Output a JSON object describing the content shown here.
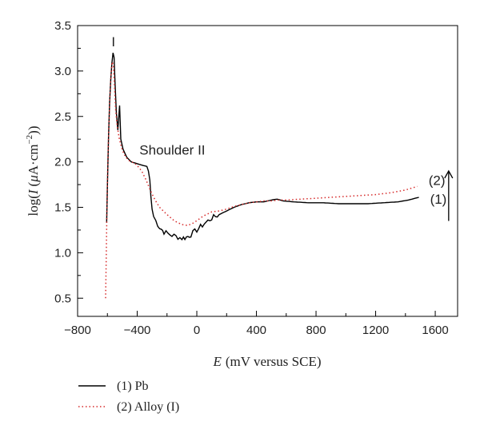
{
  "chart_data": {
    "type": "line",
    "xlabel": {
      "symbol": "E",
      "units": "(mV versus SCE)"
    },
    "ylabel": {
      "prefix": "log(",
      "symbol": "I",
      "units_open": "(",
      "mu": "μ",
      "units_body": "A·cm",
      "exponent": "−2",
      "units_close": "))"
    },
    "xlim": [
      -800,
      1750
    ],
    "ylim": [
      0.3,
      3.5
    ],
    "xticks": [
      -800,
      -400,
      0,
      400,
      800,
      1200,
      1600
    ],
    "xtick_labels": [
      "−800",
      "−400",
      "0",
      "400",
      "800",
      "1200",
      "1600"
    ],
    "yticks": [
      0.5,
      1.0,
      1.5,
      2.0,
      2.5,
      3.0,
      3.5
    ],
    "ytick_labels": [
      "0.5",
      "1.0",
      "1.5",
      "2.0",
      "2.5",
      "3.0",
      "3.5"
    ],
    "grid": false,
    "legend_position": "bottom-left, below axes",
    "series": [
      {
        "name": "(1) Pb",
        "end_label": "(1)",
        "color": "#000000",
        "style": "solid",
        "points": [
          [
            -605,
            1.33
          ],
          [
            -600,
            1.75
          ],
          [
            -593,
            2.25
          ],
          [
            -585,
            2.65
          ],
          [
            -578,
            2.9
          ],
          [
            -570,
            3.08
          ],
          [
            -562,
            3.2
          ],
          [
            -555,
            3.15
          ],
          [
            -548,
            2.85
          ],
          [
            -540,
            2.55
          ],
          [
            -530,
            2.35
          ],
          [
            -518,
            2.62
          ],
          [
            -510,
            2.25
          ],
          [
            -495,
            2.14
          ],
          [
            -470,
            2.05
          ],
          [
            -440,
            2.0
          ],
          [
            -400,
            1.98
          ],
          [
            -360,
            1.96
          ],
          [
            -335,
            1.95
          ],
          [
            -325,
            1.9
          ],
          [
            -315,
            1.8
          ],
          [
            -308,
            1.62
          ],
          [
            -300,
            1.48
          ],
          [
            -290,
            1.4
          ],
          [
            -275,
            1.35
          ],
          [
            -250,
            1.28
          ],
          [
            -220,
            1.23
          ],
          [
            -180,
            1.2
          ],
          [
            -140,
            1.18
          ],
          [
            -100,
            1.16
          ],
          [
            -70,
            1.17
          ],
          [
            -40,
            1.2
          ],
          [
            0,
            1.25
          ],
          [
            50,
            1.32
          ],
          [
            100,
            1.38
          ],
          [
            150,
            1.42
          ],
          [
            200,
            1.46
          ],
          [
            250,
            1.5
          ],
          [
            300,
            1.53
          ],
          [
            350,
            1.55
          ],
          [
            400,
            1.56
          ],
          [
            450,
            1.56
          ],
          [
            500,
            1.58
          ],
          [
            540,
            1.59
          ],
          [
            580,
            1.57
          ],
          [
            650,
            1.56
          ],
          [
            750,
            1.55
          ],
          [
            850,
            1.55
          ],
          [
            950,
            1.54
          ],
          [
            1050,
            1.54
          ],
          [
            1150,
            1.54
          ],
          [
            1250,
            1.55
          ],
          [
            1350,
            1.56
          ],
          [
            1420,
            1.58
          ],
          [
            1490,
            1.61
          ]
        ]
      },
      {
        "name": "(2) Alloy (I)",
        "end_label": "(2)",
        "color": "#d62a2a",
        "style": "dotted",
        "points": [
          [
            -612,
            0.5
          ],
          [
            -608,
            0.95
          ],
          [
            -603,
            1.5
          ],
          [
            -597,
            2.0
          ],
          [
            -590,
            2.4
          ],
          [
            -582,
            2.75
          ],
          [
            -575,
            2.98
          ],
          [
            -568,
            3.1
          ],
          [
            -560,
            3.07
          ],
          [
            -553,
            2.85
          ],
          [
            -545,
            2.58
          ],
          [
            -535,
            2.4
          ],
          [
            -520,
            2.25
          ],
          [
            -500,
            2.13
          ],
          [
            -480,
            2.06
          ],
          [
            -460,
            2.02
          ],
          [
            -440,
            2.0
          ],
          [
            -420,
            1.99
          ],
          [
            -400,
            1.96
          ],
          [
            -370,
            1.9
          ],
          [
            -340,
            1.8
          ],
          [
            -310,
            1.68
          ],
          [
            -280,
            1.58
          ],
          [
            -250,
            1.5
          ],
          [
            -200,
            1.42
          ],
          [
            -150,
            1.35
          ],
          [
            -100,
            1.31
          ],
          [
            -60,
            1.3
          ],
          [
            -20,
            1.33
          ],
          [
            40,
            1.4
          ],
          [
            100,
            1.45
          ],
          [
            150,
            1.46
          ],
          [
            200,
            1.48
          ],
          [
            250,
            1.51
          ],
          [
            300,
            1.53
          ],
          [
            350,
            1.55
          ],
          [
            400,
            1.56
          ],
          [
            450,
            1.57
          ],
          [
            500,
            1.57
          ],
          [
            550,
            1.58
          ],
          [
            600,
            1.58
          ],
          [
            700,
            1.59
          ],
          [
            800,
            1.6
          ],
          [
            900,
            1.61
          ],
          [
            1000,
            1.62
          ],
          [
            1100,
            1.63
          ],
          [
            1200,
            1.64
          ],
          [
            1300,
            1.66
          ],
          [
            1400,
            1.69
          ],
          [
            1480,
            1.73
          ]
        ]
      }
    ],
    "annotations": [
      {
        "text": "I",
        "x": -560,
        "y": 3.27
      },
      {
        "text": "Shoulder II",
        "x": -385,
        "y": 2.08
      }
    ],
    "arrow": {
      "x": 1690,
      "y_from": 1.35,
      "y_to": 1.9
    }
  }
}
